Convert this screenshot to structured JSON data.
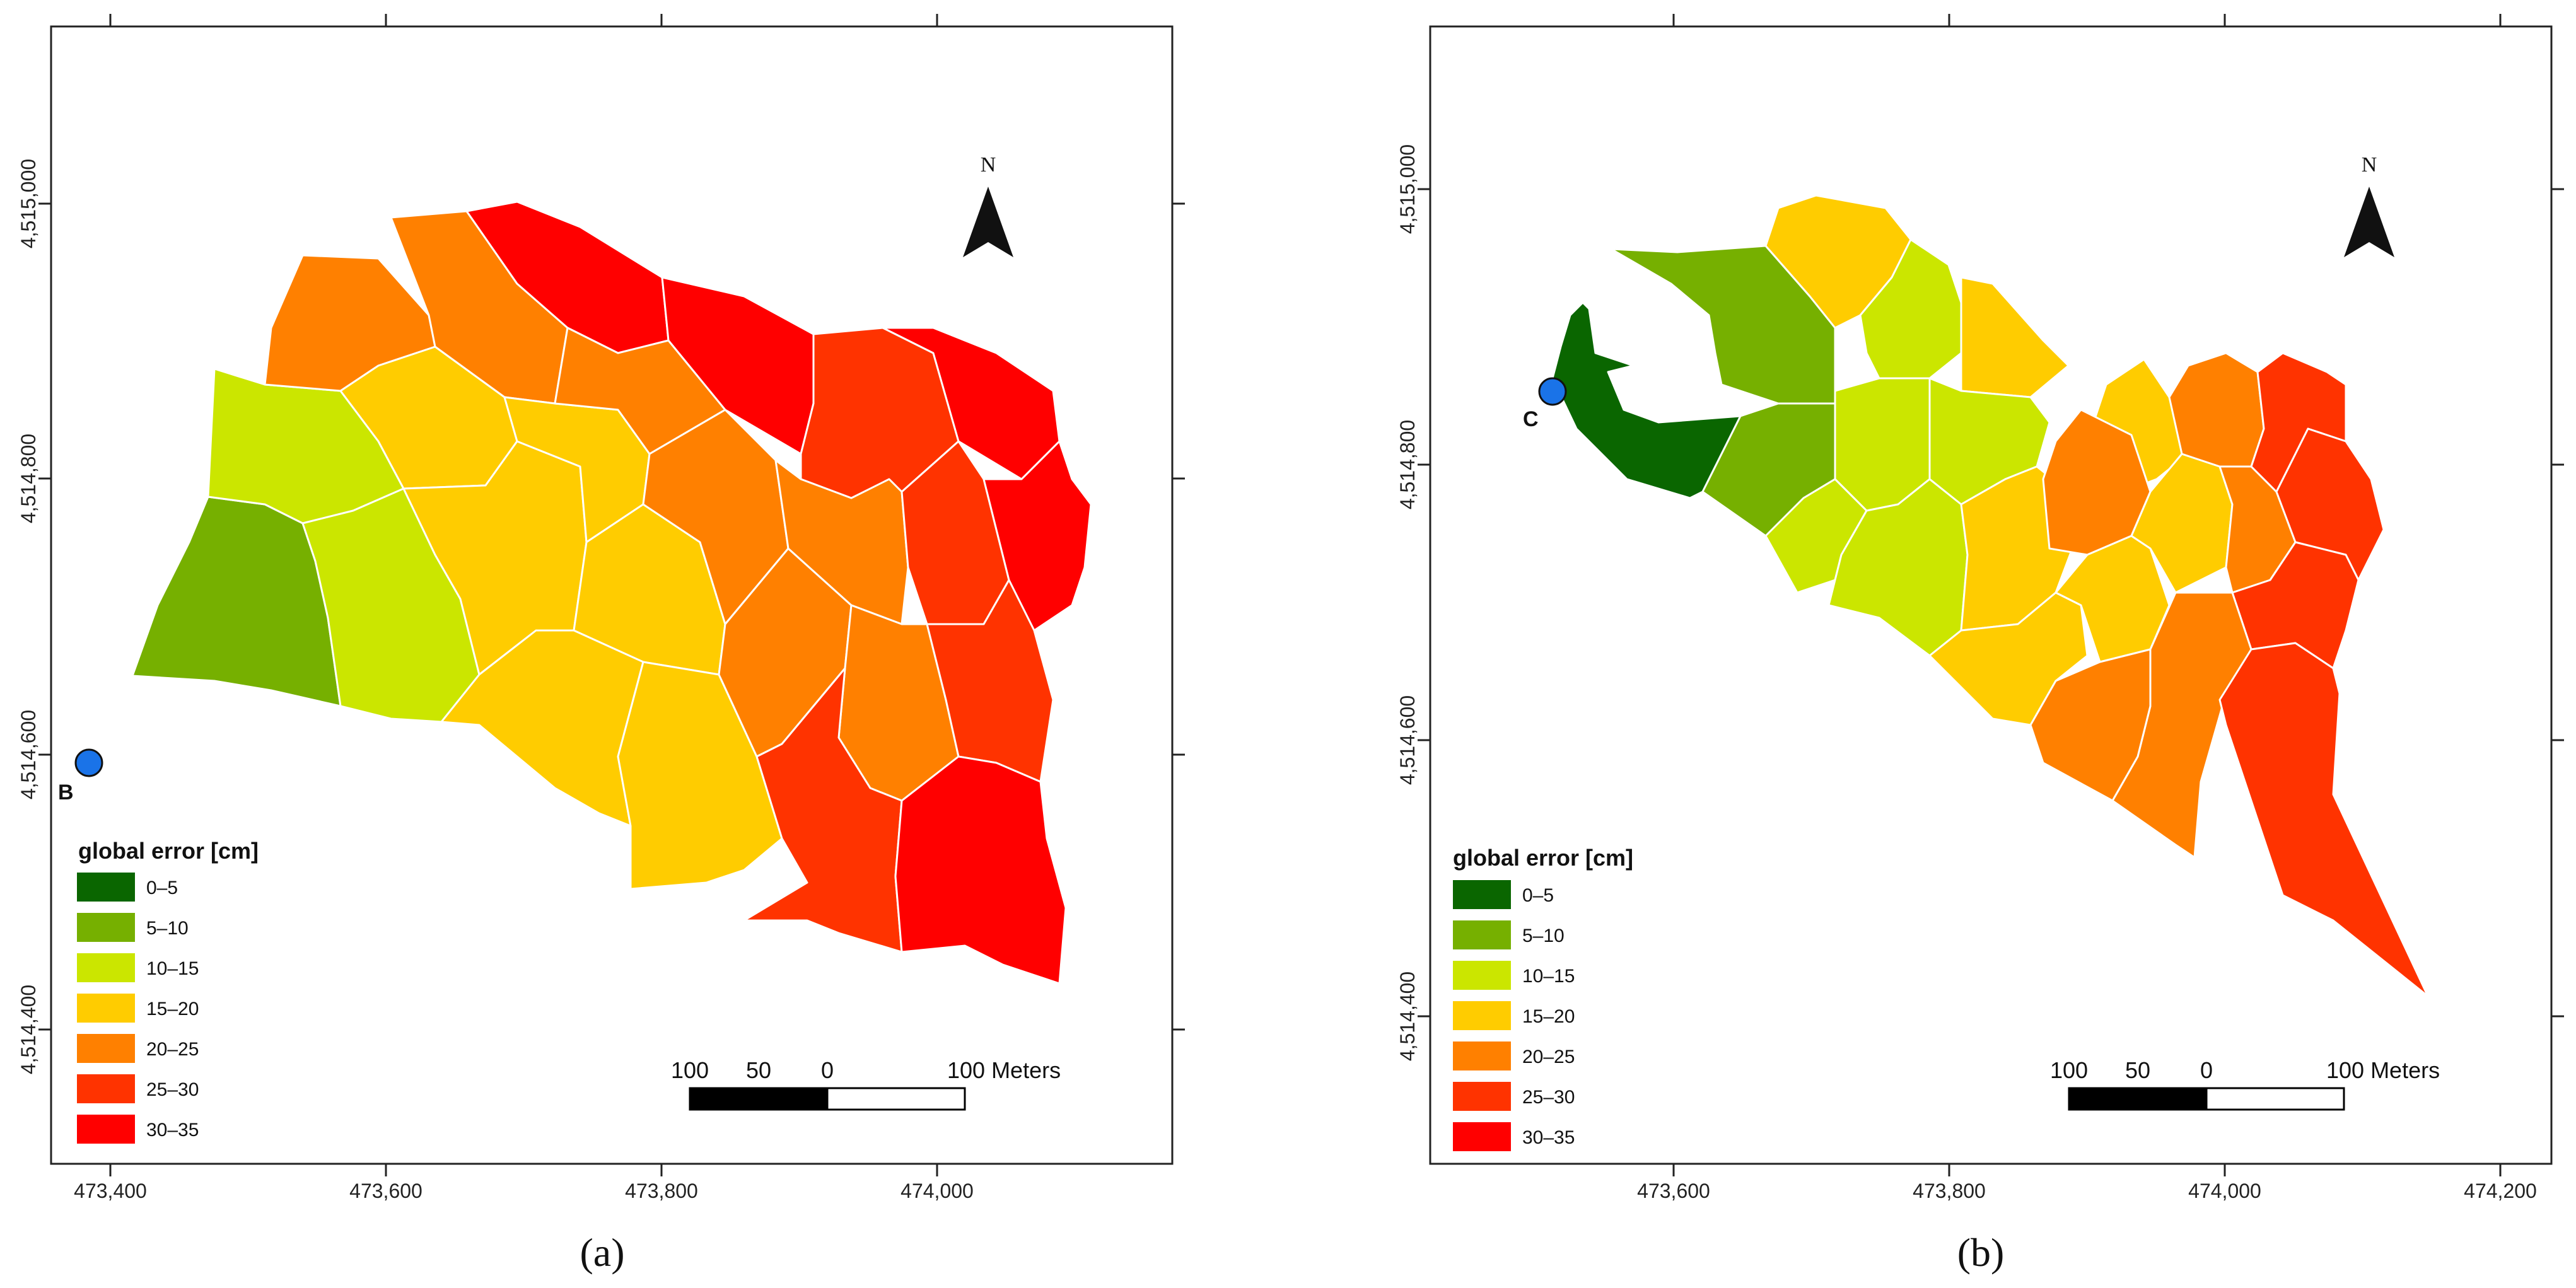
{
  "colors": {
    "0-5": "#0a6600",
    "5-10": "#76b000",
    "10-15": "#cbe600",
    "15-20": "#ffcc00",
    "20-25": "#ff8000",
    "25-30": "#ff3300",
    "30-35": "#ff0000",
    "point": "#1a73e8"
  },
  "panels": [
    {
      "caption": "(a)",
      "x_ticks": [
        "473,400",
        "473,600",
        "473,800",
        "474,000"
      ],
      "y_ticks": [
        "4,515,000",
        "4,514,800",
        "4,514,600",
        "4,514,400"
      ],
      "legend_title": "global error [cm]",
      "legend_items": [
        "0–5",
        "5–10",
        "10–15",
        "15–20",
        "20–25",
        "25–30",
        "30–35"
      ],
      "scale_labels": [
        "100",
        "50",
        "0",
        "100 Meters"
      ],
      "north_letter": "N",
      "point_label": "B"
    },
    {
      "caption": "(b)",
      "x_ticks": [
        "473,600",
        "473,800",
        "474,000",
        "474,200"
      ],
      "y_ticks": [
        "4,515,000",
        "4,514,800",
        "4,514,600",
        "4,514,400"
      ],
      "legend_title": "global error [cm]",
      "legend_items": [
        "0–5",
        "5–10",
        "10–15",
        "15–20",
        "20–25",
        "25–30",
        "30–35"
      ],
      "scale_labels": [
        "100",
        "50",
        "0",
        "100 Meters"
      ],
      "north_letter": "N",
      "point_label": "C"
    }
  ]
}
